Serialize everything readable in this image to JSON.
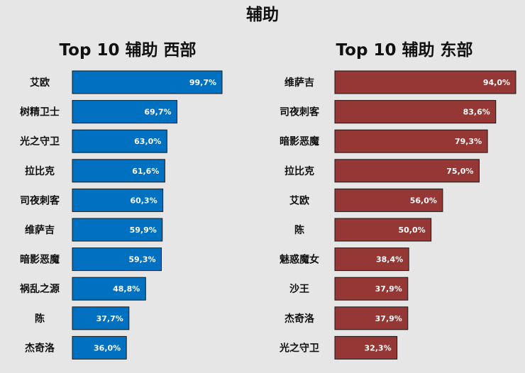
{
  "title": "辅助",
  "colors": {
    "west_bar": "#0070c0",
    "east_bar": "#953735",
    "bar_border": "#1a1a1a"
  },
  "chart_data": [
    {
      "type": "bar",
      "orientation": "horizontal",
      "title": "Top 10 辅助 西部",
      "categories": [
        "艾欧",
        "树精卫士",
        "光之守卫",
        "拉比克",
        "司夜刺客",
        "维萨吉",
        "暗影恶魔",
        "祸乱之源",
        "陈",
        "杰奇洛"
      ],
      "values": [
        99.7,
        69.7,
        63.0,
        61.6,
        60.3,
        59.9,
        59.3,
        48.8,
        37.7,
        36.0
      ],
      "value_labels": [
        "99,7%",
        "69,7%",
        "63,0%",
        "61,6%",
        "60,3%",
        "59,9%",
        "59,3%",
        "48,8%",
        "37,7%",
        "36,0%"
      ],
      "xlim": [
        0,
        100
      ],
      "grid": false
    },
    {
      "type": "bar",
      "orientation": "horizontal",
      "title": "Top 10 辅助 东部",
      "categories": [
        "维萨吉",
        "司夜刺客",
        "暗影恶魔",
        "拉比克",
        "艾欧",
        "陈",
        "魅惑魔女",
        "沙王",
        "杰奇洛",
        "光之守卫"
      ],
      "values": [
        94.0,
        83.6,
        79.3,
        75.0,
        56.0,
        50.0,
        38.4,
        37.9,
        37.9,
        32.3
      ],
      "value_labels": [
        "94,0%",
        "83,6%",
        "79,3%",
        "75,0%",
        "56,0%",
        "50,0%",
        "38,4%",
        "37,9%",
        "37,9%",
        "32,3%"
      ],
      "xlim": [
        0,
        100
      ],
      "grid": false
    }
  ]
}
